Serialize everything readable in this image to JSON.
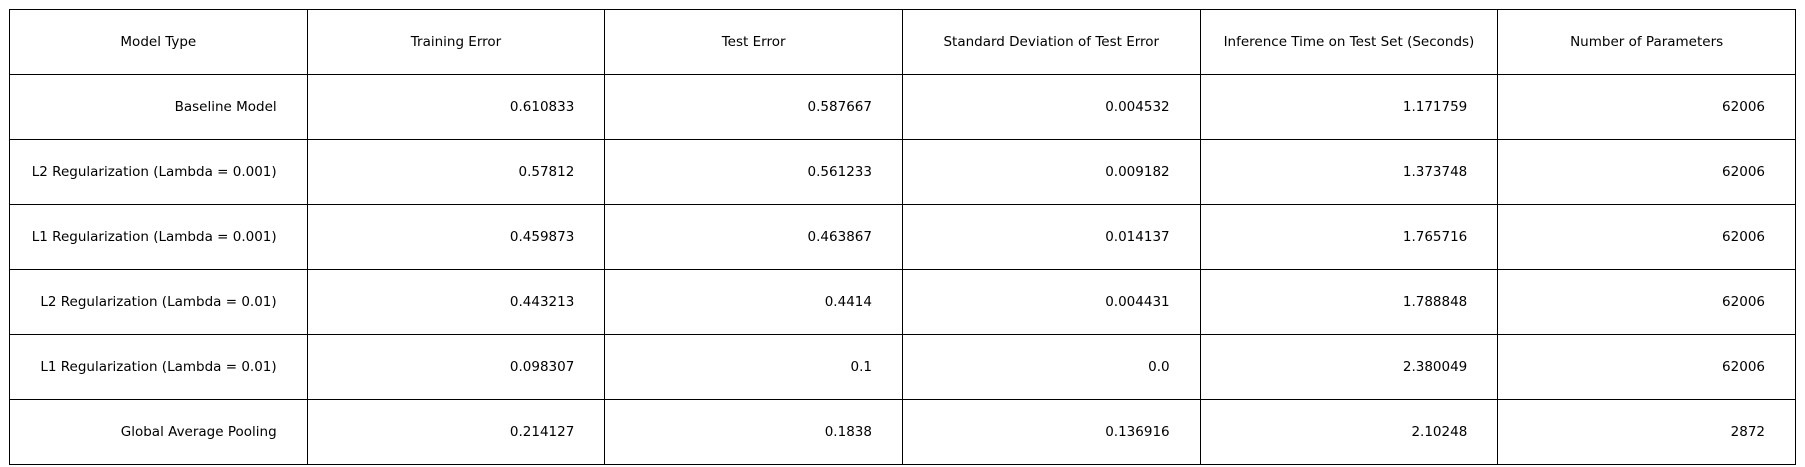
{
  "chart_data": {
    "type": "table",
    "columns": [
      "Model Type",
      "Training Error",
      "Test Error",
      "Standard Deviation of Test Error",
      "Inference Time on Test Set (Seconds)",
      "Number of Parameters"
    ],
    "rows": [
      [
        "Baseline Model",
        "0.610833",
        "0.587667",
        "0.004532",
        "1.171759",
        "62006"
      ],
      [
        "L2 Regularization (Lambda = 0.001)",
        "0.57812",
        "0.561233",
        "0.009182",
        "1.373748",
        "62006"
      ],
      [
        "L1 Regularization (Lambda = 0.001)",
        "0.459873",
        "0.463867",
        "0.014137",
        "1.765716",
        "62006"
      ],
      [
        "L2 Regularization (Lambda = 0.01)",
        "0.443213",
        "0.4414",
        "0.004431",
        "1.788848",
        "62006"
      ],
      [
        "L1 Regularization (Lambda = 0.01)",
        "0.098307",
        "0.1",
        "0.0",
        "2.380049",
        "62006"
      ],
      [
        "Global Average Pooling",
        "0.214127",
        "0.1838",
        "0.136916",
        "2.10248",
        "2872"
      ]
    ]
  }
}
